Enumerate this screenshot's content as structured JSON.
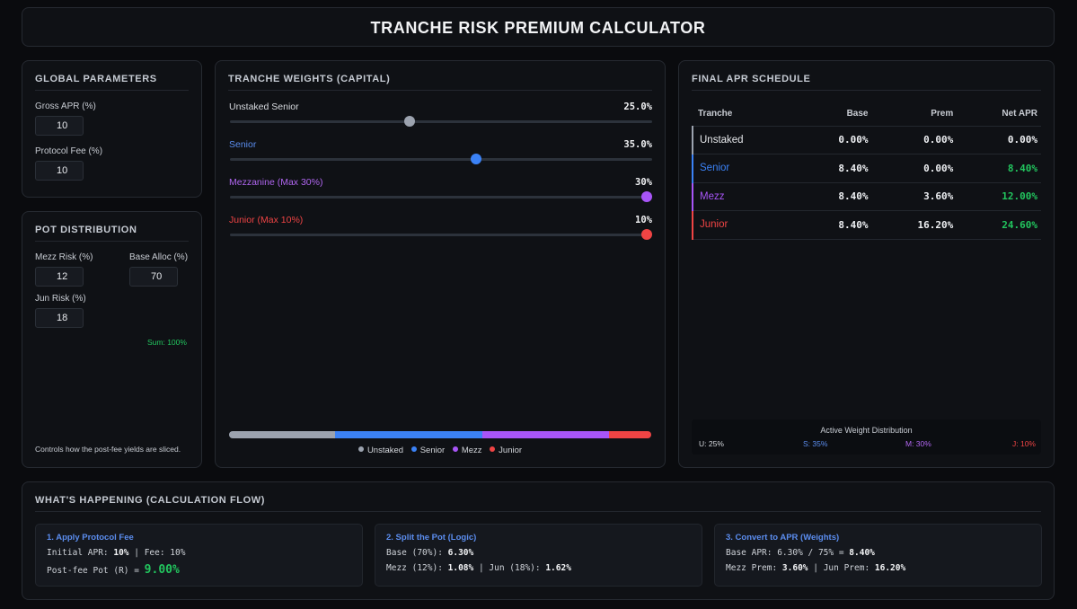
{
  "header": {
    "title": "TRANCHE RISK PREMIUM CALCULATOR"
  },
  "global": {
    "title": "GLOBAL PARAMETERS",
    "gross_apr_label": "Gross APR (%)",
    "gross_apr_value": "10",
    "protocol_fee_label": "Protocol Fee (%)",
    "protocol_fee_value": "10"
  },
  "pot": {
    "title": "POT DISTRIBUTION",
    "mezz_risk_label": "Mezz Risk (%)",
    "mezz_risk_value": "12",
    "base_alloc_label": "Base Alloc (%)",
    "base_alloc_value": "70",
    "jun_risk_label": "Jun Risk (%)",
    "jun_risk_value": "18",
    "sum_text": "Sum: 100%",
    "note": "Controls how the post-fee yields are sliced."
  },
  "weights": {
    "title": "TRANCHE WEIGHTS (CAPITAL)",
    "sliders": [
      {
        "label": "Unstaked Senior",
        "value_text": "25.0%",
        "fraction": 0.4262,
        "color": "#9ca3af",
        "label_color": "#d6d9de"
      },
      {
        "label": "Senior",
        "value_text": "35.0%",
        "fraction": 0.5838,
        "color": "#3b82f6",
        "label_color": "#5b8def"
      },
      {
        "label": "Mezzanine (Max 30%)",
        "value_text": "30%",
        "fraction": 1.0,
        "color": "#a855f7",
        "label_color": "#b066f0"
      },
      {
        "label": "Junior (Max 10%)",
        "value_text": "10%",
        "fraction": 1.0,
        "color": "#ef4444",
        "label_color": "#ef4444"
      }
    ],
    "distribution": [
      {
        "name": "Unstaked",
        "percent": 25,
        "color": "#9ca3af"
      },
      {
        "name": "Senior",
        "percent": 35,
        "color": "#3b82f6"
      },
      {
        "name": "Mezz",
        "percent": 30,
        "color": "#a855f7"
      },
      {
        "name": "Junior",
        "percent": 10,
        "color": "#ef4444"
      }
    ],
    "legend": [
      "Unstaked",
      "Senior",
      "Mezz",
      "Junior"
    ]
  },
  "schedule": {
    "title": "FINAL APR SCHEDULE",
    "columns": [
      "Tranche",
      "Base",
      "Prem",
      "Net APR"
    ],
    "rows": [
      {
        "tranche": "Unstaked",
        "base": "0.00%",
        "prem": "0.00%",
        "net": "0.00%",
        "color": "#9ca3af",
        "net_color": "#eef0f3"
      },
      {
        "tranche": "Senior",
        "base": "8.40%",
        "prem": "0.00%",
        "net": "8.40%",
        "color": "#3b82f6",
        "net_color": "#22c55e"
      },
      {
        "tranche": "Mezz",
        "base": "8.40%",
        "prem": "3.60%",
        "net": "12.00%",
        "color": "#a855f7",
        "net_color": "#22c55e"
      },
      {
        "tranche": "Junior",
        "base": "8.40%",
        "prem": "16.20%",
        "net": "24.60%",
        "color": "#ef4444",
        "net_color": "#22c55e"
      }
    ],
    "weight_box_title": "Active Weight Distribution",
    "weight_labels": [
      {
        "text": "U: 25%",
        "color": "#d6d9de"
      },
      {
        "text": "S: 35%",
        "color": "#5b8def"
      },
      {
        "text": "M: 30%",
        "color": "#b066f0"
      },
      {
        "text": "J: 10%",
        "color": "#ef4444"
      }
    ]
  },
  "flow": {
    "title": "WHAT'S HAPPENING (CALCULATION FLOW)",
    "step1": {
      "title": "1. Apply Protocol Fee",
      "l1_a": "Initial APR: ",
      "l1_b": "10%",
      "l1_c": " | Fee: 10%",
      "l2_a": "Post-fee Pot (R) = ",
      "l2_b": "9.00%"
    },
    "step2": {
      "title": "2. Split the Pot (Logic)",
      "l1_a": "Base (70%): ",
      "l1_b": "6.30%",
      "l2_a": "Mezz (12%): ",
      "l2_b": "1.08%",
      "l2_c": " | Jun (18%): ",
      "l2_d": "1.62%"
    },
    "step3": {
      "title": "3. Convert to APR (Weights)",
      "l1_a": "Base APR: 6.30% / 75% = ",
      "l1_b": "8.40%",
      "l2_a": "Mezz Prem: ",
      "l2_b": "3.60%",
      "l2_c": " | Jun Prem: ",
      "l2_d": "16.20%"
    }
  }
}
